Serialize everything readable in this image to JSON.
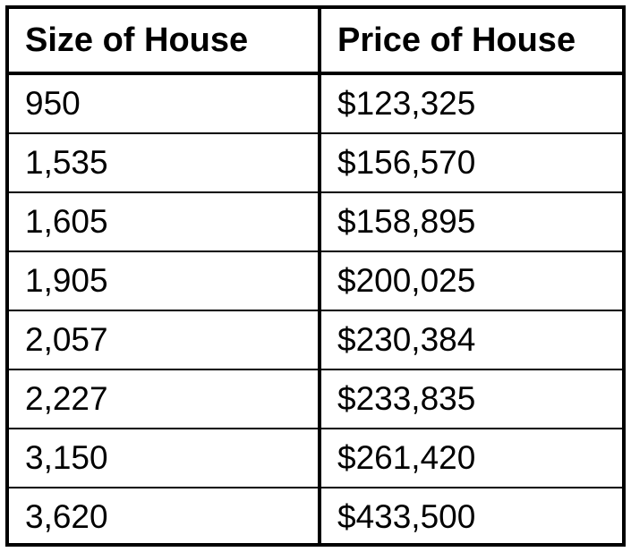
{
  "table": {
    "headers": [
      "Size of House",
      "Price of House"
    ],
    "rows": [
      [
        "950",
        "$123,325"
      ],
      [
        "1,535",
        "$156,570"
      ],
      [
        "1,605",
        "$158,895"
      ],
      [
        "1,905",
        "$200,025"
      ],
      [
        "2,057",
        "$230,384"
      ],
      [
        "2,227",
        "$233,835"
      ],
      [
        "3,150",
        "$261,420"
      ],
      [
        "3,620",
        "$433,500"
      ]
    ]
  }
}
